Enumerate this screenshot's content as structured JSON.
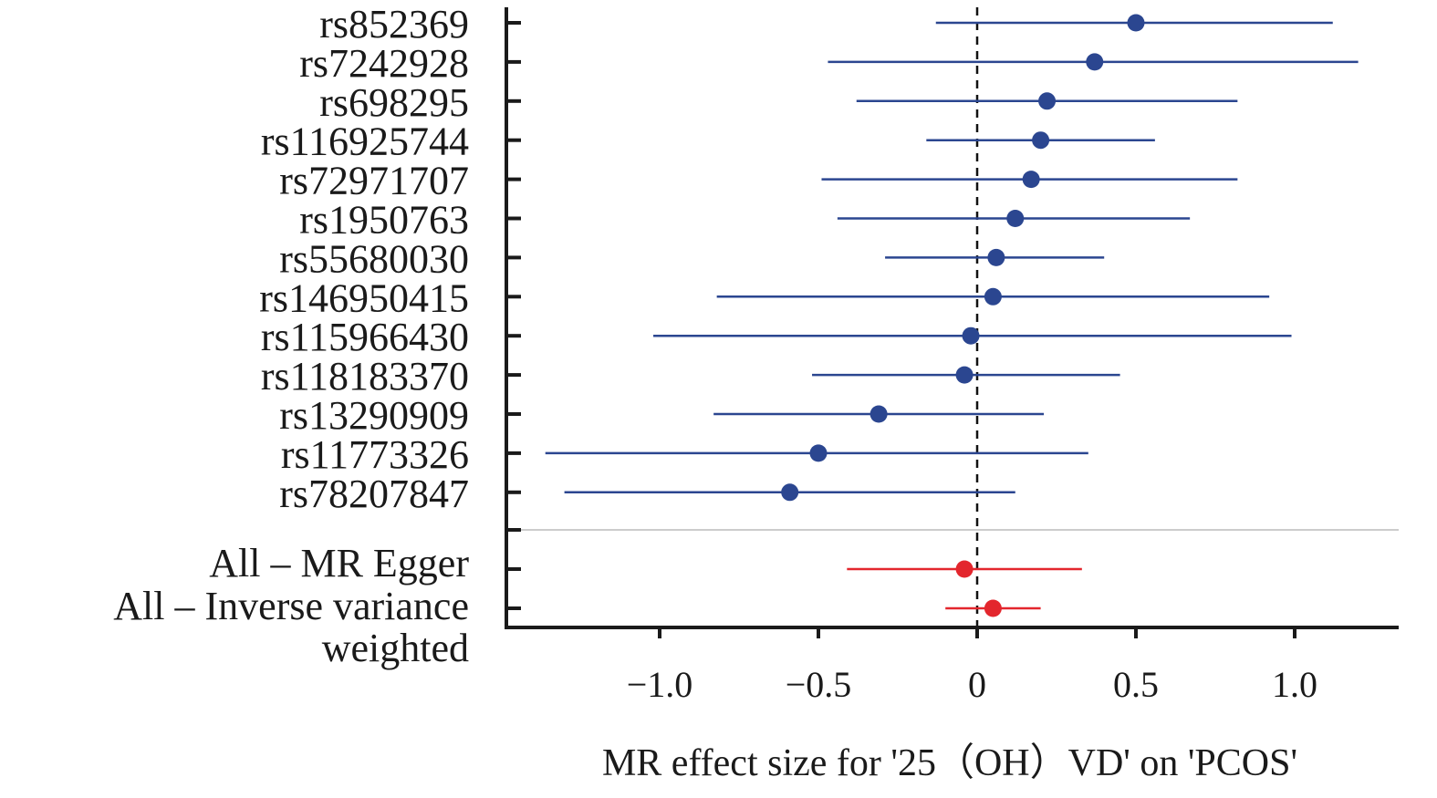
{
  "chart_data": {
    "type": "forest",
    "xlabel": "MR effect size for '25（OH）VD' on 'PCOS'",
    "xticks": [
      -1.0,
      -0.5,
      0,
      0.5,
      1.0
    ],
    "xtick_labels": [
      "−1.0",
      "−0.5",
      "0",
      "0.5",
      "1.0"
    ],
    "xlim": [
      -1.48,
      1.33
    ],
    "reference_line": 0,
    "colors": {
      "snp": "#2b4690",
      "summary": "#e3262d",
      "axis": "#1a1a1a",
      "divider": "#cccccc"
    },
    "snps": [
      {
        "label": "rs852369",
        "estimate": 0.5,
        "lower": -0.13,
        "upper": 1.12
      },
      {
        "label": "rs7242928",
        "estimate": 0.37,
        "lower": -0.47,
        "upper": 1.2
      },
      {
        "label": "rs698295",
        "estimate": 0.22,
        "lower": -0.38,
        "upper": 0.82
      },
      {
        "label": "rs116925744",
        "estimate": 0.2,
        "lower": -0.16,
        "upper": 0.56
      },
      {
        "label": "rs72971707",
        "estimate": 0.17,
        "lower": -0.49,
        "upper": 0.82
      },
      {
        "label": "rs1950763",
        "estimate": 0.12,
        "lower": -0.44,
        "upper": 0.67
      },
      {
        "label": "rs55680030",
        "estimate": 0.06,
        "lower": -0.29,
        "upper": 0.4
      },
      {
        "label": "rs146950415",
        "estimate": 0.05,
        "lower": -0.82,
        "upper": 0.92
      },
      {
        "label": "rs115966430",
        "estimate": -0.02,
        "lower": -1.02,
        "upper": 0.99
      },
      {
        "label": "rs118183370",
        "estimate": -0.04,
        "lower": -0.52,
        "upper": 0.45
      },
      {
        "label": "rs13290909",
        "estimate": -0.31,
        "lower": -0.83,
        "upper": 0.21
      },
      {
        "label": "rs11773326",
        "estimate": -0.5,
        "lower": -1.36,
        "upper": 0.35
      },
      {
        "label": "rs78207847",
        "estimate": -0.59,
        "lower": -1.3,
        "upper": 0.12
      }
    ],
    "summaries": [
      {
        "label_lines": [
          "All – MR Egger"
        ],
        "estimate": -0.04,
        "lower": -0.41,
        "upper": 0.33
      },
      {
        "label_lines": [
          "All – Inverse variance",
          "weighted"
        ],
        "estimate": 0.05,
        "lower": -0.1,
        "upper": 0.2
      }
    ]
  }
}
